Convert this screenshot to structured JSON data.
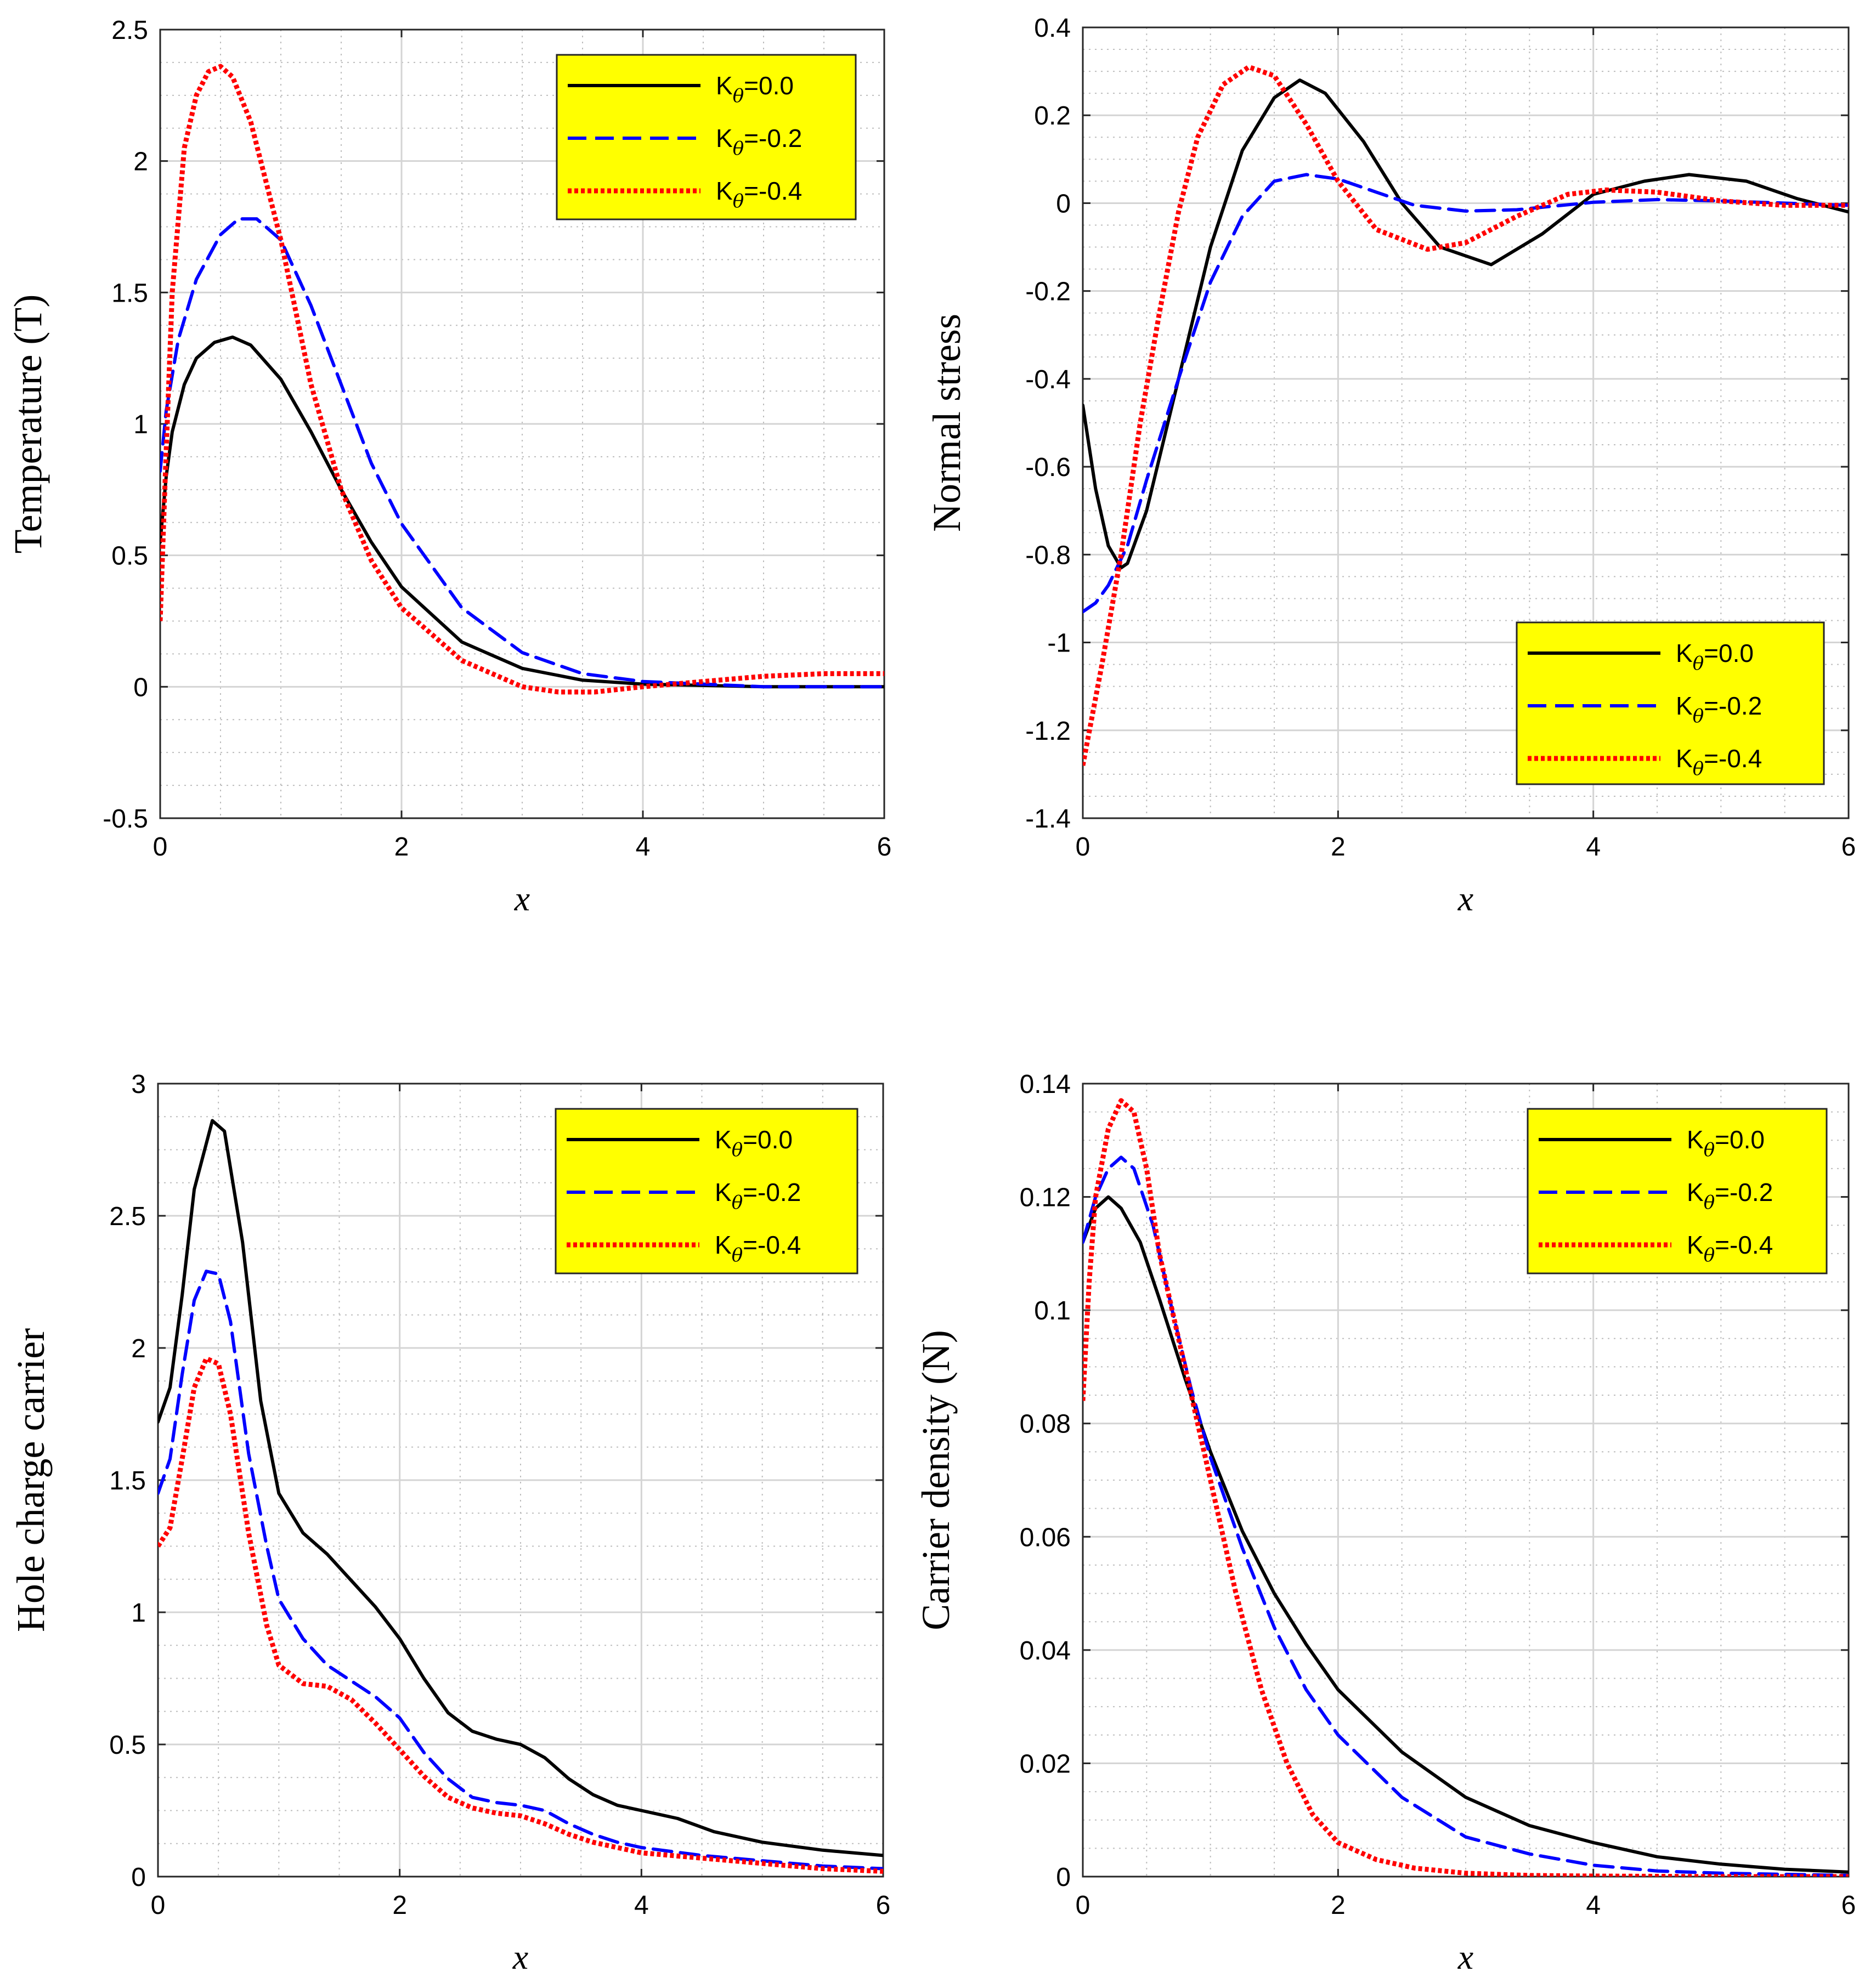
{
  "figure": {
    "legend_labels": [
      "K",
      "θ",
      "=0.0",
      "=-0.2",
      "=-0.4"
    ]
  },
  "chart_data": [
    {
      "type": "line",
      "title": "",
      "xlabel": "x",
      "ylabel": "Temperature (T)",
      "xlim": [
        0,
        6
      ],
      "ylim": [
        -0.5,
        2.5
      ],
      "xticks": [
        0,
        2,
        4,
        6
      ],
      "yticks": [
        -0.5,
        0,
        0.5,
        1,
        1.5,
        2,
        2.5
      ],
      "grid": true,
      "legend_position": "top-right",
      "series": [
        {
          "name": "Kθ=0.0",
          "color": "#000000",
          "style": "solid",
          "x": [
            0,
            0.05,
            0.1,
            0.2,
            0.3,
            0.45,
            0.6,
            0.75,
            1.0,
            1.25,
            1.5,
            1.75,
            2.0,
            2.5,
            3.0,
            3.5,
            4.0,
            5.0,
            6.0
          ],
          "y": [
            0.55,
            0.8,
            0.97,
            1.15,
            1.25,
            1.31,
            1.33,
            1.3,
            1.17,
            0.97,
            0.75,
            0.55,
            0.38,
            0.17,
            0.07,
            0.025,
            0.01,
            0.0,
            0.0
          ]
        },
        {
          "name": "Kθ=-0.2",
          "color": "#0000ff",
          "style": "dashed",
          "x": [
            0,
            0.05,
            0.15,
            0.3,
            0.5,
            0.65,
            0.8,
            1.0,
            1.25,
            1.5,
            1.75,
            2.0,
            2.5,
            3.0,
            3.5,
            4.0,
            5.0,
            6.0
          ],
          "y": [
            0.82,
            1.05,
            1.32,
            1.55,
            1.72,
            1.78,
            1.78,
            1.7,
            1.45,
            1.15,
            0.85,
            0.62,
            0.3,
            0.13,
            0.05,
            0.02,
            0.0,
            0.0
          ]
        },
        {
          "name": "Kθ=-0.4",
          "color": "#ff0000",
          "style": "dotted",
          "x": [
            0,
            0.05,
            0.1,
            0.2,
            0.3,
            0.4,
            0.5,
            0.6,
            0.75,
            1.0,
            1.25,
            1.5,
            1.75,
            2.0,
            2.5,
            3.0,
            3.3,
            3.6,
            4.0,
            4.5,
            5.0,
            5.5,
            6.0
          ],
          "y": [
            0.25,
            0.9,
            1.5,
            2.05,
            2.25,
            2.34,
            2.36,
            2.32,
            2.15,
            1.7,
            1.15,
            0.75,
            0.48,
            0.3,
            0.1,
            0.0,
            -0.02,
            -0.02,
            0.0,
            0.02,
            0.04,
            0.05,
            0.05
          ]
        }
      ]
    },
    {
      "type": "line",
      "title": "",
      "xlabel": "x",
      "ylabel": "Normal stress",
      "xlim": [
        0,
        6
      ],
      "ylim": [
        -1.4,
        0.4
      ],
      "xticks": [
        0,
        2,
        4,
        6
      ],
      "yticks": [
        -1.4,
        -1.2,
        -1,
        -0.8,
        -0.6,
        -0.4,
        -0.2,
        0,
        0.2,
        0.4
      ],
      "grid": true,
      "legend_position": "bottom-right",
      "series": [
        {
          "name": "Kθ=0.0",
          "color": "#000000",
          "style": "solid",
          "x": [
            0,
            0.1,
            0.2,
            0.3,
            0.35,
            0.5,
            0.75,
            1.0,
            1.25,
            1.5,
            1.7,
            1.9,
            2.2,
            2.5,
            2.8,
            3.2,
            3.6,
            4.0,
            4.4,
            4.75,
            5.2,
            5.6,
            6.0
          ],
          "y": [
            -0.46,
            -0.65,
            -0.78,
            -0.83,
            -0.82,
            -0.7,
            -0.4,
            -0.1,
            0.12,
            0.24,
            0.28,
            0.25,
            0.14,
            0.0,
            -0.1,
            -0.14,
            -0.07,
            0.02,
            0.05,
            0.065,
            0.05,
            0.01,
            -0.02
          ]
        },
        {
          "name": "Kθ=-0.2",
          "color": "#0000ff",
          "style": "dashed",
          "x": [
            0,
            0.1,
            0.2,
            0.35,
            0.5,
            0.75,
            1.0,
            1.25,
            1.5,
            1.75,
            2.0,
            2.3,
            2.6,
            3.0,
            3.4,
            4.0,
            4.5,
            5.0,
            6.0
          ],
          "y": [
            -0.93,
            -0.91,
            -0.87,
            -0.78,
            -0.63,
            -0.4,
            -0.18,
            -0.03,
            0.05,
            0.065,
            0.055,
            0.025,
            -0.005,
            -0.018,
            -0.015,
            0.002,
            0.008,
            0.005,
            -0.005
          ]
        },
        {
          "name": "Kθ=-0.4",
          "color": "#ff0000",
          "style": "dotted",
          "x": [
            0,
            0.15,
            0.3,
            0.45,
            0.6,
            0.75,
            0.9,
            1.1,
            1.3,
            1.5,
            1.75,
            2.0,
            2.3,
            2.7,
            3.0,
            3.4,
            3.8,
            4.1,
            4.5,
            5.0,
            5.5,
            6.0
          ],
          "y": [
            -1.28,
            -1.05,
            -0.8,
            -0.5,
            -0.25,
            -0.02,
            0.15,
            0.27,
            0.31,
            0.29,
            0.18,
            0.05,
            -0.06,
            -0.105,
            -0.09,
            -0.03,
            0.02,
            0.03,
            0.025,
            0.005,
            -0.005,
            -0.005
          ]
        }
      ]
    },
    {
      "type": "line",
      "title": "",
      "xlabel": "x",
      "ylabel": "Hole charge carrier",
      "xlim": [
        0,
        6
      ],
      "ylim": [
        0,
        3
      ],
      "xticks": [
        0,
        2,
        4,
        6
      ],
      "yticks": [
        0,
        0.5,
        1,
        1.5,
        2,
        2.5,
        3
      ],
      "grid": true,
      "legend_position": "top-right",
      "series": [
        {
          "name": "Kθ=0.0",
          "color": "#000000",
          "style": "solid",
          "x": [
            0,
            0.1,
            0.2,
            0.3,
            0.45,
            0.55,
            0.7,
            0.85,
            1.0,
            1.2,
            1.4,
            1.6,
            1.8,
            2.0,
            2.2,
            2.4,
            2.6,
            2.8,
            3.0,
            3.2,
            3.4,
            3.6,
            3.8,
            4.0,
            4.3,
            4.6,
            5.0,
            5.5,
            6.0
          ],
          "y": [
            1.72,
            1.85,
            2.2,
            2.6,
            2.86,
            2.82,
            2.4,
            1.8,
            1.45,
            1.3,
            1.22,
            1.12,
            1.02,
            0.9,
            0.75,
            0.62,
            0.55,
            0.52,
            0.5,
            0.45,
            0.37,
            0.31,
            0.27,
            0.25,
            0.22,
            0.17,
            0.13,
            0.1,
            0.08
          ]
        },
        {
          "name": "Kθ=-0.2",
          "color": "#0000ff",
          "style": "dashed",
          "x": [
            0,
            0.1,
            0.2,
            0.3,
            0.4,
            0.5,
            0.6,
            0.75,
            0.9,
            1.0,
            1.2,
            1.4,
            1.6,
            1.8,
            2.0,
            2.2,
            2.4,
            2.6,
            2.8,
            3.0,
            3.2,
            3.4,
            3.6,
            3.8,
            4.0,
            4.5,
            5.0,
            5.5,
            6.0
          ],
          "y": [
            1.45,
            1.58,
            1.9,
            2.18,
            2.29,
            2.28,
            2.1,
            1.6,
            1.25,
            1.05,
            0.9,
            0.8,
            0.74,
            0.68,
            0.6,
            0.47,
            0.37,
            0.3,
            0.28,
            0.27,
            0.25,
            0.2,
            0.16,
            0.13,
            0.11,
            0.08,
            0.06,
            0.04,
            0.03
          ]
        },
        {
          "name": "Kθ=-0.4",
          "color": "#ff0000",
          "style": "dotted",
          "x": [
            0,
            0.1,
            0.2,
            0.3,
            0.4,
            0.5,
            0.6,
            0.75,
            0.9,
            1.0,
            1.2,
            1.4,
            1.6,
            1.8,
            2.0,
            2.2,
            2.4,
            2.6,
            2.8,
            3.0,
            3.2,
            3.4,
            3.6,
            3.8,
            4.0,
            4.5,
            5.0,
            5.5,
            6.0
          ],
          "y": [
            1.25,
            1.32,
            1.58,
            1.85,
            1.96,
            1.94,
            1.75,
            1.3,
            0.95,
            0.8,
            0.73,
            0.72,
            0.67,
            0.58,
            0.48,
            0.38,
            0.3,
            0.26,
            0.24,
            0.23,
            0.2,
            0.16,
            0.13,
            0.11,
            0.09,
            0.07,
            0.05,
            0.03,
            0.02
          ]
        }
      ]
    },
    {
      "type": "line",
      "title": "",
      "xlabel": "x",
      "ylabel": "Carrier density (N)",
      "xlim": [
        0,
        6
      ],
      "ylim": [
        0,
        0.14
      ],
      "xticks": [
        0,
        2,
        4,
        6
      ],
      "yticks": [
        0,
        0.02,
        0.04,
        0.06,
        0.08,
        0.1,
        0.12,
        0.14
      ],
      "grid": true,
      "legend_position": "top-right",
      "series": [
        {
          "name": "Kθ=0.0",
          "color": "#000000",
          "style": "solid",
          "x": [
            0,
            0.1,
            0.2,
            0.3,
            0.45,
            0.6,
            0.8,
            1.0,
            1.25,
            1.5,
            1.75,
            2.0,
            2.5,
            3.0,
            3.5,
            4.0,
            4.5,
            5.0,
            5.5,
            6.0
          ],
          "y": [
            0.112,
            0.118,
            0.12,
            0.118,
            0.112,
            0.102,
            0.088,
            0.075,
            0.061,
            0.05,
            0.041,
            0.033,
            0.022,
            0.014,
            0.009,
            0.006,
            0.0035,
            0.0022,
            0.0013,
            0.0008
          ]
        },
        {
          "name": "Kθ=-0.2",
          "color": "#0000ff",
          "style": "dashed",
          "x": [
            0,
            0.1,
            0.2,
            0.3,
            0.4,
            0.55,
            0.7,
            0.85,
            1.0,
            1.25,
            1.5,
            1.75,
            2.0,
            2.5,
            3.0,
            3.5,
            4.0,
            4.5,
            5.0,
            6.0
          ],
          "y": [
            0.112,
            0.12,
            0.125,
            0.127,
            0.125,
            0.115,
            0.1,
            0.086,
            0.074,
            0.058,
            0.044,
            0.033,
            0.025,
            0.014,
            0.007,
            0.004,
            0.002,
            0.001,
            0.0006,
            0.0002
          ]
        },
        {
          "name": "Kθ=-0.4",
          "color": "#ff0000",
          "style": "dotted",
          "x": [
            0,
            0.05,
            0.1,
            0.2,
            0.3,
            0.4,
            0.5,
            0.6,
            0.75,
            0.9,
            1.0,
            1.2,
            1.4,
            1.6,
            1.8,
            2.0,
            2.3,
            2.6,
            3.0,
            3.5,
            4.0,
            5.0,
            6.0
          ],
          "y": [
            0.084,
            0.105,
            0.12,
            0.132,
            0.137,
            0.135,
            0.125,
            0.11,
            0.095,
            0.08,
            0.07,
            0.05,
            0.033,
            0.02,
            0.011,
            0.006,
            0.003,
            0.0015,
            0.0006,
            0.0002,
            0.0001,
            0.0,
            0.0
          ]
        }
      ]
    }
  ]
}
